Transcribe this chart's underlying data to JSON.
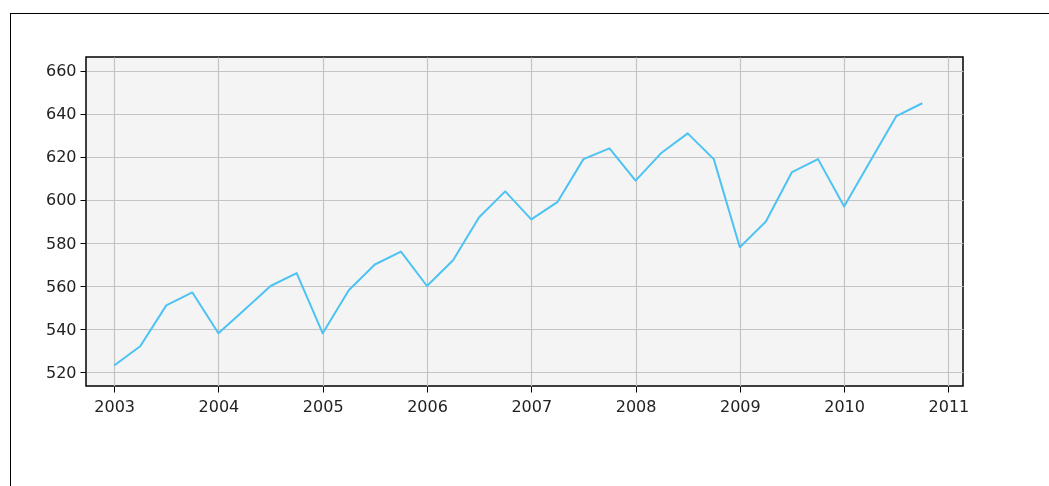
{
  "chart_data": {
    "type": "line",
    "x": [
      2003,
      2003.25,
      2003.5,
      2003.75,
      2004,
      2004.25,
      2004.5,
      2004.75,
      2005,
      2005.25,
      2005.5,
      2005.75,
      2006,
      2006.25,
      2006.5,
      2006.75,
      2007,
      2007.25,
      2007.5,
      2007.75,
      2008,
      2008.25,
      2008.5,
      2008.75,
      2009,
      2009.25,
      2009.5,
      2009.75,
      2010,
      2010.25,
      2010.5,
      2010.75
    ],
    "series": [
      {
        "color": "#4cc3f2",
        "values": [
          523,
          532,
          551,
          557,
          538,
          549,
          560,
          566,
          538,
          558,
          570,
          576,
          560,
          572,
          592,
          604,
          591,
          599,
          619,
          624,
          609,
          622,
          631,
          619,
          578,
          590,
          613,
          619,
          597,
          618,
          639,
          645
        ]
      }
    ],
    "xlim": [
      2002.73,
      2011.14
    ],
    "xticks": [
      2003,
      2004,
      2005,
      2006,
      2007,
      2008,
      2009,
      2010,
      2011
    ],
    "ylim": [
      513.5,
      666.5
    ],
    "yticks": [
      520,
      540,
      560,
      580,
      600,
      620,
      640,
      660
    ],
    "grid": true,
    "legend": false,
    "marker": "none",
    "line_style": "solid"
  }
}
